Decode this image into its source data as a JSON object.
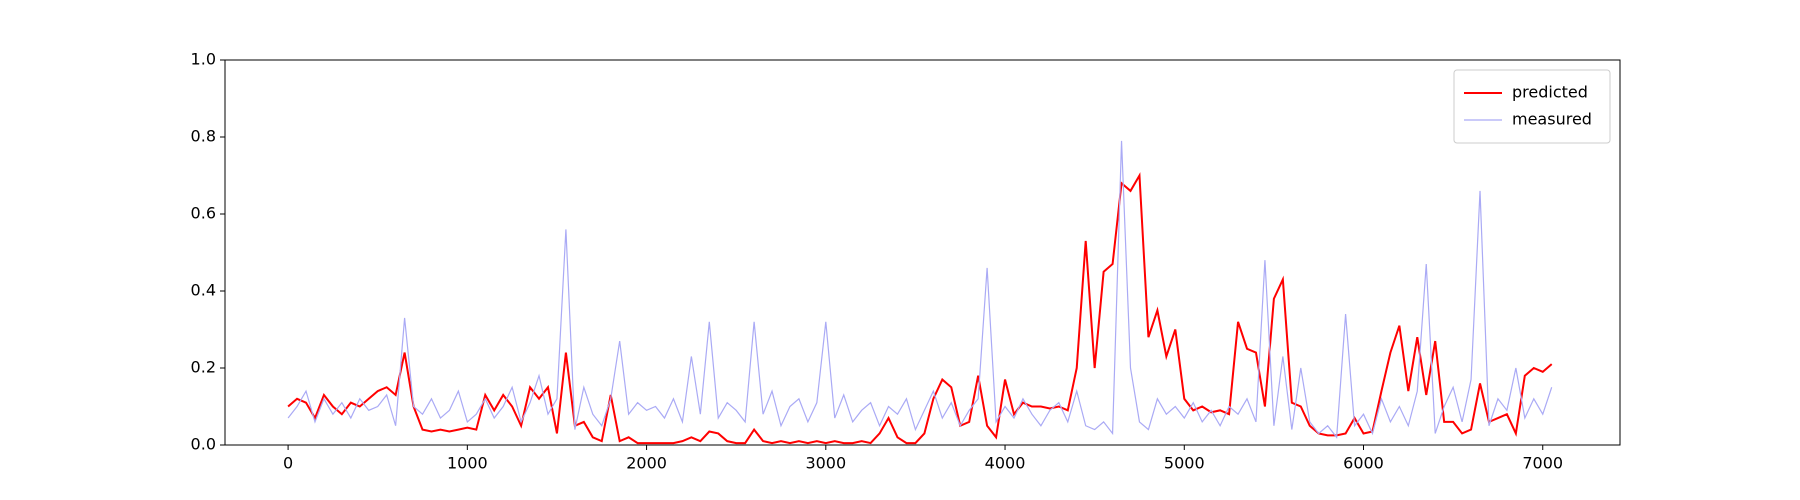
{
  "chart_data": {
    "type": "line",
    "x": [
      0,
      50,
      100,
      150,
      200,
      250,
      300,
      350,
      400,
      450,
      500,
      550,
      600,
      650,
      700,
      750,
      800,
      850,
      900,
      950,
      1000,
      1050,
      1100,
      1150,
      1200,
      1250,
      1300,
      1350,
      1400,
      1450,
      1500,
      1550,
      1600,
      1650,
      1700,
      1750,
      1800,
      1850,
      1900,
      1950,
      2000,
      2050,
      2100,
      2150,
      2200,
      2250,
      2300,
      2350,
      2400,
      2450,
      2500,
      2550,
      2600,
      2650,
      2700,
      2750,
      2800,
      2850,
      2900,
      2950,
      3000,
      3050,
      3100,
      3150,
      3200,
      3250,
      3300,
      3350,
      3400,
      3450,
      3500,
      3550,
      3600,
      3650,
      3700,
      3750,
      3800,
      3850,
      3900,
      3950,
      4000,
      4050,
      4100,
      4150,
      4200,
      4250,
      4300,
      4350,
      4400,
      4450,
      4500,
      4550,
      4600,
      4650,
      4700,
      4750,
      4800,
      4850,
      4900,
      4950,
      5000,
      5050,
      5100,
      5150,
      5200,
      5250,
      5300,
      5350,
      5400,
      5450,
      5500,
      5550,
      5600,
      5650,
      5700,
      5750,
      5800,
      5850,
      5900,
      5950,
      6000,
      6050,
      6100,
      6150,
      6200,
      6250,
      6300,
      6350,
      6400,
      6450,
      6500,
      6550,
      6600,
      6650,
      6700,
      6750,
      6800,
      6850,
      6900,
      6950,
      7000,
      7050
    ],
    "series": [
      {
        "name": "predicted",
        "color": "#ff0000",
        "width": 2,
        "values": [
          0.1,
          0.12,
          0.11,
          0.07,
          0.13,
          0.1,
          0.08,
          0.11,
          0.1,
          0.12,
          0.14,
          0.15,
          0.13,
          0.24,
          0.1,
          0.04,
          0.035,
          0.04,
          0.035,
          0.04,
          0.045,
          0.04,
          0.13,
          0.09,
          0.13,
          0.1,
          0.05,
          0.15,
          0.12,
          0.15,
          0.03,
          0.24,
          0.05,
          0.06,
          0.02,
          0.01,
          0.13,
          0.01,
          0.02,
          0.005,
          0.005,
          0.005,
          0.005,
          0.005,
          0.01,
          0.02,
          0.01,
          0.035,
          0.03,
          0.01,
          0.005,
          0.005,
          0.04,
          0.01,
          0.005,
          0.01,
          0.005,
          0.01,
          0.005,
          0.01,
          0.005,
          0.01,
          0.005,
          0.005,
          0.01,
          0.005,
          0.03,
          0.07,
          0.02,
          0.005,
          0.005,
          0.03,
          0.12,
          0.17,
          0.15,
          0.05,
          0.06,
          0.18,
          0.05,
          0.02,
          0.17,
          0.08,
          0.11,
          0.1,
          0.1,
          0.095,
          0.1,
          0.09,
          0.2,
          0.53,
          0.2,
          0.45,
          0.47,
          0.68,
          0.66,
          0.7,
          0.28,
          0.35,
          0.23,
          0.3,
          0.12,
          0.09,
          0.1,
          0.085,
          0.09,
          0.08,
          0.32,
          0.25,
          0.24,
          0.1,
          0.38,
          0.43,
          0.11,
          0.1,
          0.05,
          0.03,
          0.025,
          0.025,
          0.03,
          0.07,
          0.03,
          0.035,
          0.14,
          0.24,
          0.31,
          0.14,
          0.28,
          0.13,
          0.27,
          0.06,
          0.06,
          0.03,
          0.04,
          0.16,
          0.06,
          0.07,
          0.08,
          0.03,
          0.18,
          0.2,
          0.19,
          0.21
        ]
      },
      {
        "name": "measured",
        "color": "#aaaaf5",
        "width": 1.2,
        "values": [
          0.07,
          0.1,
          0.14,
          0.06,
          0.12,
          0.08,
          0.11,
          0.07,
          0.12,
          0.09,
          0.1,
          0.13,
          0.05,
          0.33,
          0.1,
          0.08,
          0.12,
          0.07,
          0.09,
          0.14,
          0.06,
          0.08,
          0.12,
          0.07,
          0.1,
          0.15,
          0.06,
          0.11,
          0.18,
          0.08,
          0.12,
          0.56,
          0.04,
          0.15,
          0.08,
          0.05,
          0.12,
          0.27,
          0.08,
          0.11,
          0.09,
          0.1,
          0.07,
          0.12,
          0.06,
          0.23,
          0.08,
          0.32,
          0.07,
          0.11,
          0.09,
          0.06,
          0.32,
          0.08,
          0.14,
          0.05,
          0.1,
          0.12,
          0.06,
          0.11,
          0.32,
          0.07,
          0.13,
          0.06,
          0.09,
          0.11,
          0.05,
          0.1,
          0.08,
          0.12,
          0.04,
          0.09,
          0.14,
          0.07,
          0.11,
          0.05,
          0.09,
          0.12,
          0.46,
          0.06,
          0.1,
          0.07,
          0.12,
          0.08,
          0.05,
          0.09,
          0.11,
          0.06,
          0.14,
          0.05,
          0.04,
          0.06,
          0.03,
          0.79,
          0.2,
          0.06,
          0.04,
          0.12,
          0.08,
          0.1,
          0.07,
          0.11,
          0.06,
          0.09,
          0.05,
          0.1,
          0.08,
          0.12,
          0.06,
          0.48,
          0.05,
          0.23,
          0.04,
          0.2,
          0.06,
          0.03,
          0.05,
          0.02,
          0.34,
          0.05,
          0.08,
          0.03,
          0.12,
          0.06,
          0.1,
          0.05,
          0.14,
          0.47,
          0.03,
          0.1,
          0.15,
          0.06,
          0.17,
          0.66,
          0.05,
          0.12,
          0.09,
          0.2,
          0.07,
          0.12,
          0.08,
          0.15
        ]
      }
    ],
    "xlim": [
      -352,
      7431
    ],
    "ylim": [
      0,
      1
    ],
    "xticks": [
      0,
      1000,
      2000,
      3000,
      4000,
      5000,
      6000,
      7000
    ],
    "yticks": [
      {
        "value": 0,
        "label": "0.0"
      },
      0.2,
      0.4,
      0.6,
      0.8,
      {
        "value": 1,
        "label": "1.0"
      }
    ],
    "legend": "upper right"
  }
}
